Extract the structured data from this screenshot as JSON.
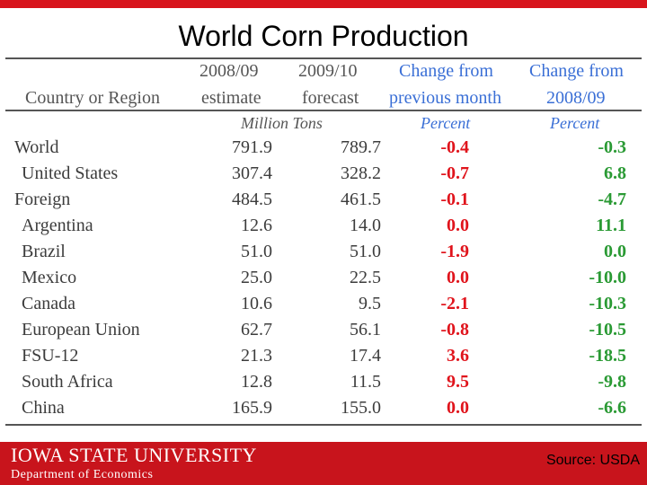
{
  "title": "World Corn Production",
  "header": {
    "col_name": "Country or Region",
    "col1_line1": "2008/09",
    "col1_line2": "estimate",
    "col2_line1": "2009/10",
    "col2_line2": "forecast",
    "col3_line1": "Change from",
    "col3_line2": "previous month",
    "col4_line1": "Change from",
    "col4_line2": "2008/09",
    "unit_tons": "Million Tons",
    "unit_pct1": "Percent",
    "unit_pct2": "Percent"
  },
  "rows": [
    {
      "name": "World",
      "est": "791.9",
      "fc": "789.7",
      "chg_month": "-0.4",
      "chg_year": "-0.3"
    },
    {
      "name": "United States",
      "est": "307.4",
      "fc": "328.2",
      "chg_month": "-0.7",
      "chg_year": "6.8"
    },
    {
      "name": "Foreign",
      "est": "484.5",
      "fc": "461.5",
      "chg_month": "-0.1",
      "chg_year": "-4.7"
    },
    {
      "name": "Argentina",
      "est": "12.6",
      "fc": "14.0",
      "chg_month": "0.0",
      "chg_year": "11.1"
    },
    {
      "name": "Brazil",
      "est": "51.0",
      "fc": "51.0",
      "chg_month": "-1.9",
      "chg_year": "0.0"
    },
    {
      "name": "Mexico",
      "est": "25.0",
      "fc": "22.5",
      "chg_month": "0.0",
      "chg_year": "-10.0"
    },
    {
      "name": "Canada",
      "est": "10.6",
      "fc": "9.5",
      "chg_month": "-2.1",
      "chg_year": "-10.3"
    },
    {
      "name": "European Union",
      "est": "62.7",
      "fc": "56.1",
      "chg_month": "-0.8",
      "chg_year": "-10.5"
    },
    {
      "name": "FSU-12",
      "est": "21.3",
      "fc": "17.4",
      "chg_month": "3.6",
      "chg_year": "-18.5"
    },
    {
      "name": "South Africa",
      "est": "12.8",
      "fc": "11.5",
      "chg_month": "9.5",
      "chg_year": "-9.8"
    },
    {
      "name": "China",
      "est": "165.9",
      "fc": "155.0",
      "chg_month": "0.0",
      "chg_year": "-6.6"
    }
  ],
  "footer": {
    "logo_line": "IOWA STATE UNIVERSITY",
    "department": "Department of Economics",
    "source": "Source: USDA"
  },
  "colors": {
    "accent": "#d8141c",
    "month_change": "#e0141c",
    "year_change": "#2a9a34",
    "header_blue": "#3a6fd6"
  }
}
